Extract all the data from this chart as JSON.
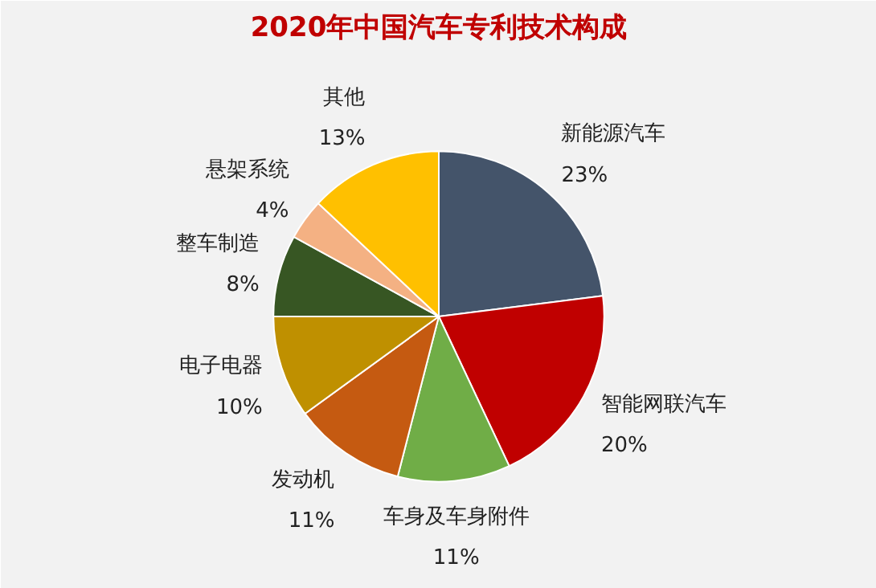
{
  "chart_data": {
    "type": "pie",
    "title": "2020年中国汽车专利技术构成",
    "categories": [
      "新能源汽车",
      "智能网联汽车",
      "车身及车身附件",
      "发动机",
      "电子电器",
      "整车制造",
      "悬架系统",
      "其他"
    ],
    "values": [
      23,
      20,
      11,
      11,
      10,
      8,
      4,
      13
    ],
    "value_labels": [
      "23%",
      "20%",
      "11%",
      "11%",
      "10%",
      "8%",
      "4%",
      "13%"
    ],
    "colors": [
      "#44546a",
      "#c00000",
      "#70ad47",
      "#c55a11",
      "#bf9000",
      "#375623",
      "#f4b183",
      "#ffc000"
    ]
  }
}
